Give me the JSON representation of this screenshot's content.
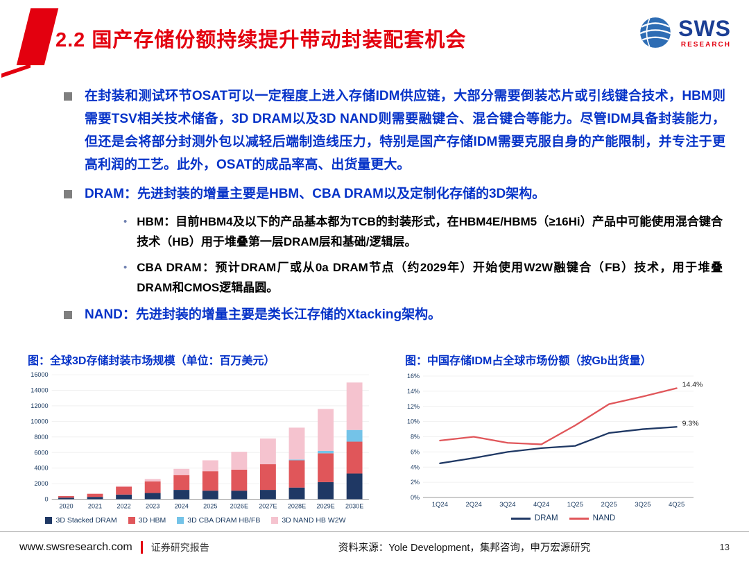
{
  "header": {
    "title": "2.2  国产存储份额持续提升带动封装配套机会",
    "logo": {
      "text": "SWS",
      "subtext": "RESEARCH"
    }
  },
  "bullets": [
    {
      "level": 1,
      "text": "在封装和测试环节OSAT可以一定程度上进入存储IDM供应链，大部分需要倒装芯片或引线键合技术，HBM则需要TSV相关技术储备，3D DRAM以及3D NAND则需要融键合、混合键合等能力。尽管IDM具备封装能力，但还是会将部分封测外包以减轻后端制造线压力，特别是国产存储IDM需要克服自身的产能限制，并专注于更高利润的工艺。此外，OSAT的成品率高、出货量更大。"
    },
    {
      "level": 1,
      "text": "DRAM：先进封装的增量主要是HBM、CBA DRAM以及定制化存储的3D架构。"
    },
    {
      "level": 2,
      "text": "HBM：目前HBM4及以下的产品基本都为TCB的封装形式，在HBM4E/HBM5（≥16Hi）产品中可能使用混合键合技术（HB）用于堆叠第一层DRAM层和基础/逻辑层。"
    },
    {
      "level": 2,
      "text": "CBA DRAM：预计DRAM厂或从0a DRAM节点（约2029年）开始使用W2W融键合（FB）技术，用于堆叠DRAM和CMOS逻辑晶圆。"
    },
    {
      "level": 1,
      "text": "NAND：先进封装的增量主要是类长江存储的Xtacking架构。"
    }
  ],
  "chart_data": [
    {
      "type": "bar",
      "stacked": true,
      "title": "图：全球3D存储封装市场规模（单位：百万美元）",
      "categories": [
        "2020",
        "2021",
        "2022",
        "2023",
        "2024",
        "2025",
        "2026E",
        "2027E",
        "2028E",
        "2029E",
        "2030E"
      ],
      "series": [
        {
          "name": "3D Stacked DRAM",
          "color": "#1F3864",
          "values": [
            200,
            300,
            600,
            800,
            1200,
            1100,
            1100,
            1200,
            1500,
            2200,
            3300
          ]
        },
        {
          "name": "3D HBM",
          "color": "#E0565A",
          "values": [
            200,
            400,
            1000,
            1500,
            1900,
            2500,
            2700,
            3300,
            3500,
            3700,
            4100
          ]
        },
        {
          "name": "3D CBA DRAM HB/FB",
          "color": "#74C3E8",
          "values": [
            0,
            0,
            0,
            0,
            0,
            0,
            0,
            0,
            100,
            300,
            1500
          ]
        },
        {
          "name": "3D NAND HB W2W",
          "color": "#F5C3CF",
          "values": [
            0,
            0,
            100,
            300,
            800,
            1400,
            2300,
            3300,
            4100,
            5400,
            6100
          ]
        }
      ],
      "ylim": [
        0,
        16000
      ],
      "ytick_step": 2000,
      "ytick_suffix": "",
      "grid": "faint",
      "legend_position": "bottom"
    },
    {
      "type": "line",
      "title": "图：中国存储IDM占全球市场份额（按Gb出货量）",
      "categories": [
        "1Q24",
        "2Q24",
        "3Q24",
        "4Q24",
        "1Q25",
        "2Q25",
        "3Q25",
        "4Q25"
      ],
      "series": [
        {
          "name": "DRAM",
          "color": "#1F3864",
          "values": [
            4.5,
            5.2,
            6.0,
            6.5,
            6.8,
            8.5,
            9.0,
            9.3
          ],
          "end_label": "9.3%"
        },
        {
          "name": "NAND",
          "color": "#E0565A",
          "values": [
            7.5,
            8.0,
            7.2,
            7.0,
            9.5,
            12.3,
            13.3,
            14.4
          ],
          "end_label": "14.4%"
        }
      ],
      "ylim": [
        0,
        16
      ],
      "ytick_step": 2,
      "ytick_suffix": "%",
      "grid": "faint",
      "legend_position": "bottom"
    }
  ],
  "footer": {
    "site": "www.swsresearch.com",
    "report_type": "证券研究报告",
    "source": "资料来源：Yole Development，集邦咨询，申万宏源研究",
    "page": "13"
  },
  "colors": {
    "title_red": "#E3000F",
    "body_blue": "#0633C8",
    "navy": "#17375E"
  }
}
